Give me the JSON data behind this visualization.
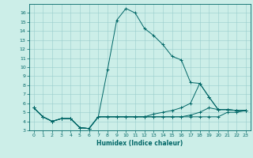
{
  "xlabel": "Humidex (Indice chaleur)",
  "background_color": "#cceee8",
  "grid_color": "#99cccc",
  "line_color": "#006666",
  "xlim": [
    -0.5,
    23.5
  ],
  "ylim": [
    3,
    17
  ],
  "xticks": [
    0,
    1,
    2,
    3,
    4,
    5,
    6,
    7,
    8,
    9,
    10,
    11,
    12,
    13,
    14,
    15,
    16,
    17,
    18,
    19,
    20,
    21,
    22,
    23
  ],
  "yticks": [
    3,
    4,
    5,
    6,
    7,
    8,
    9,
    10,
    11,
    12,
    13,
    14,
    15,
    16
  ],
  "series": [
    {
      "x": [
        0,
        1,
        2,
        3,
        4,
        5,
        6,
        7,
        8,
        9,
        10,
        11,
        12,
        13,
        14,
        15,
        16,
        17,
        18,
        19,
        20,
        21,
        22,
        23
      ],
      "y": [
        5.5,
        4.5,
        4.0,
        4.3,
        4.3,
        3.3,
        3.2,
        4.5,
        9.7,
        15.2,
        16.5,
        16.0,
        14.3,
        13.5,
        12.5,
        11.2,
        10.8,
        8.3,
        8.2,
        6.7,
        5.3,
        5.3,
        5.2,
        5.2
      ]
    },
    {
      "x": [
        0,
        1,
        2,
        3,
        4,
        5,
        6,
        7,
        8,
        9,
        10,
        11,
        12,
        13,
        14,
        15,
        16,
        17,
        18,
        19,
        20,
        21,
        22,
        23
      ],
      "y": [
        5.5,
        4.5,
        4.0,
        4.3,
        4.3,
        3.3,
        3.2,
        4.5,
        4.5,
        4.5,
        4.5,
        4.5,
        4.5,
        4.8,
        5.0,
        5.2,
        5.5,
        6.0,
        8.2,
        6.7,
        5.3,
        5.3,
        5.2,
        5.2
      ]
    },
    {
      "x": [
        0,
        1,
        2,
        3,
        4,
        5,
        6,
        7,
        8,
        9,
        10,
        11,
        12,
        13,
        14,
        15,
        16,
        17,
        18,
        19,
        20,
        21,
        22,
        23
      ],
      "y": [
        5.5,
        4.5,
        4.0,
        4.3,
        4.3,
        3.3,
        3.2,
        4.5,
        4.5,
        4.5,
        4.5,
        4.5,
        4.5,
        4.5,
        4.5,
        4.5,
        4.5,
        4.7,
        5.0,
        5.5,
        5.3,
        5.3,
        5.2,
        5.2
      ]
    },
    {
      "x": [
        0,
        1,
        2,
        3,
        4,
        5,
        6,
        7,
        8,
        9,
        10,
        11,
        12,
        13,
        14,
        15,
        16,
        17,
        18,
        19,
        20,
        21,
        22,
        23
      ],
      "y": [
        5.5,
        4.5,
        4.0,
        4.3,
        4.3,
        3.3,
        3.2,
        4.5,
        4.5,
        4.5,
        4.5,
        4.5,
        4.5,
        4.5,
        4.5,
        4.5,
        4.5,
        4.5,
        4.5,
        4.5,
        4.5,
        5.0,
        5.0,
        5.2
      ]
    }
  ]
}
